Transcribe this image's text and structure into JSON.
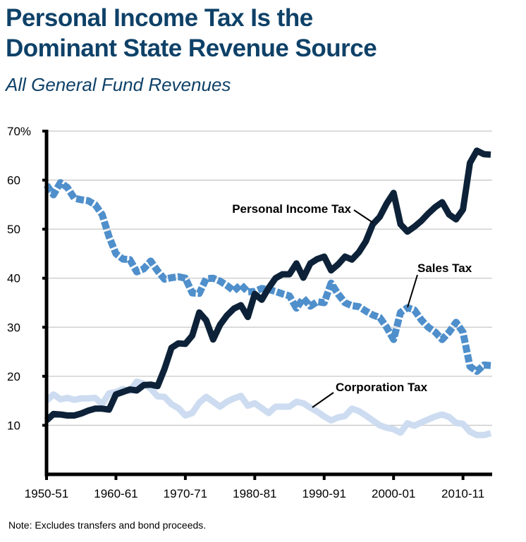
{
  "header": {
    "title_line1": "Personal Income Tax Is the",
    "title_line2": "Dominant State Revenue Source",
    "subtitle": "All General Fund Revenues"
  },
  "footer": {
    "note": "Note: Excludes transfers and bond proceeds."
  },
  "chart_data": {
    "type": "line",
    "title": "Personal Income Tax Is the Dominant State Revenue Source",
    "subtitle": "All General Fund Revenues",
    "xlabel": "",
    "ylabel": "",
    "ylim": [
      0,
      70
    ],
    "xlim": [
      1950,
      2015
    ],
    "grid": true,
    "y_ticks": [
      {
        "value": 10,
        "label": "10"
      },
      {
        "value": 20,
        "label": "20"
      },
      {
        "value": 30,
        "label": "30"
      },
      {
        "value": 40,
        "label": "40"
      },
      {
        "value": 50,
        "label": "50"
      },
      {
        "value": 60,
        "label": "60"
      },
      {
        "value": 70,
        "label": "70%"
      }
    ],
    "x_ticks": [
      {
        "value": 1950,
        "label": "1950-51"
      },
      {
        "value": 1960,
        "label": "1960-61"
      },
      {
        "value": 1970,
        "label": "1970-71"
      },
      {
        "value": 1980,
        "label": "1980-81"
      },
      {
        "value": 1990,
        "label": "1990-91"
      },
      {
        "value": 2000,
        "label": "2000-01"
      },
      {
        "value": 2010,
        "label": "2010-11"
      }
    ],
    "x": [
      1950,
      1951,
      1952,
      1953,
      1954,
      1955,
      1956,
      1957,
      1958,
      1959,
      1960,
      1961,
      1962,
      1963,
      1964,
      1965,
      1966,
      1967,
      1968,
      1969,
      1970,
      1971,
      1972,
      1973,
      1974,
      1975,
      1976,
      1977,
      1978,
      1979,
      1980,
      1981,
      1982,
      1983,
      1984,
      1985,
      1986,
      1987,
      1988,
      1989,
      1990,
      1991,
      1992,
      1993,
      1994,
      1995,
      1996,
      1997,
      1998,
      1999,
      2000,
      2001,
      2002,
      2003,
      2004,
      2005,
      2006,
      2007,
      2008,
      2009,
      2010,
      2011,
      2012,
      2013,
      2014
    ],
    "series": [
      {
        "name": "Personal Income Tax",
        "color": "#0d2238",
        "style": "solid",
        "values": [
          11,
          12.3,
          12.2,
          12,
          12,
          12.4,
          13,
          13.4,
          13.4,
          13.2,
          16.3,
          16.8,
          17.3,
          17.1,
          18.2,
          18.3,
          18,
          21.5,
          25.8,
          26.7,
          26.6,
          28.3,
          33,
          31.4,
          27.5,
          30.5,
          32.4,
          33.8,
          34.5,
          32.1,
          36.8,
          35.6,
          38,
          40,
          40.8,
          40.8,
          43,
          40.1,
          43,
          43.9,
          44.4,
          41.6,
          42.8,
          44.4,
          43.8,
          45.3,
          47.5,
          51,
          52.5,
          55.2,
          57.4,
          51,
          49.5,
          50.5,
          51.7,
          53.2,
          54.5,
          55.5,
          53,
          52,
          54,
          63.5,
          66,
          65.3,
          65.2
        ]
      },
      {
        "name": "Sales Tax",
        "color": "#4f8fcb",
        "style": "dashed",
        "values": [
          59,
          57,
          59.5,
          58.5,
          56.3,
          56,
          55.8,
          55,
          53,
          48.5,
          45,
          43.9,
          43.8,
          41.3,
          41.9,
          43.5,
          41.5,
          39.8,
          40.1,
          40.3,
          40,
          37,
          36.9,
          39.9,
          40,
          39.4,
          38.5,
          37.4,
          38.7,
          37.2,
          37.3,
          37.9,
          37.7,
          37.3,
          36.8,
          36.4,
          33.9,
          35.9,
          34.3,
          35.2,
          35,
          39,
          36.8,
          35,
          34.4,
          34.2,
          33.3,
          32.5,
          32,
          30,
          27.5,
          33,
          34,
          33.5,
          31.5,
          30,
          29,
          27.5,
          29,
          31,
          29,
          22,
          21,
          22.3,
          22.2
        ]
      },
      {
        "name": "Corporation Tax",
        "color": "#cddcf0",
        "style": "solid",
        "values": [
          15,
          16.3,
          15.3,
          15.6,
          15.2,
          15.5,
          15.5,
          15.6,
          14.3,
          16.5,
          16.8,
          17.4,
          17,
          18.9,
          18.5,
          17.5,
          15.9,
          15.8,
          14.3,
          13.5,
          12,
          12.5,
          14.6,
          15.8,
          14.8,
          13.8,
          14.8,
          15.5,
          16,
          14,
          14.5,
          13.5,
          12.5,
          13.8,
          13.8,
          13.8,
          14.8,
          14.5,
          13.6,
          12.8,
          11.8,
          11,
          11.6,
          11.9,
          13.4,
          12.9,
          12,
          11,
          10,
          9.5,
          9.2,
          8.5,
          10.4,
          9.9,
          10.6,
          11.2,
          11.8,
          12.2,
          11.7,
          10.5,
          10.3,
          8.7,
          8,
          8,
          8.4
        ]
      }
    ],
    "annotations": [
      {
        "text": "Personal Income Tax",
        "points_to": "Personal Income Tax",
        "x": 1996,
        "y": 50
      },
      {
        "text": "Sales Tax",
        "points_to": "Sales Tax",
        "x": 2003,
        "y": 34
      },
      {
        "text": "Corporation Tax",
        "points_to": "Corporation Tax",
        "x": 1989,
        "y": 14
      }
    ]
  }
}
